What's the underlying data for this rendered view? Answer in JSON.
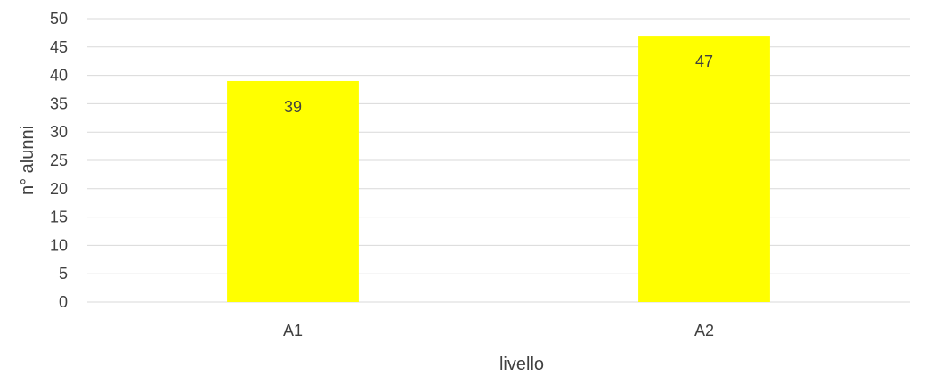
{
  "chart_data": {
    "type": "bar",
    "categories": [
      "A1",
      "A2"
    ],
    "values": [
      39,
      47
    ],
    "data_labels": [
      "39",
      "47"
    ],
    "title": "",
    "xlabel": "livello",
    "ylabel": "n° alunni",
    "ylim": [
      0,
      50
    ],
    "ytick_step": 5,
    "grid": "horizontal",
    "legend": "none",
    "colors": {
      "bar": "#FFFF00",
      "grid": "#D9D9D9",
      "text": "#404040"
    }
  }
}
